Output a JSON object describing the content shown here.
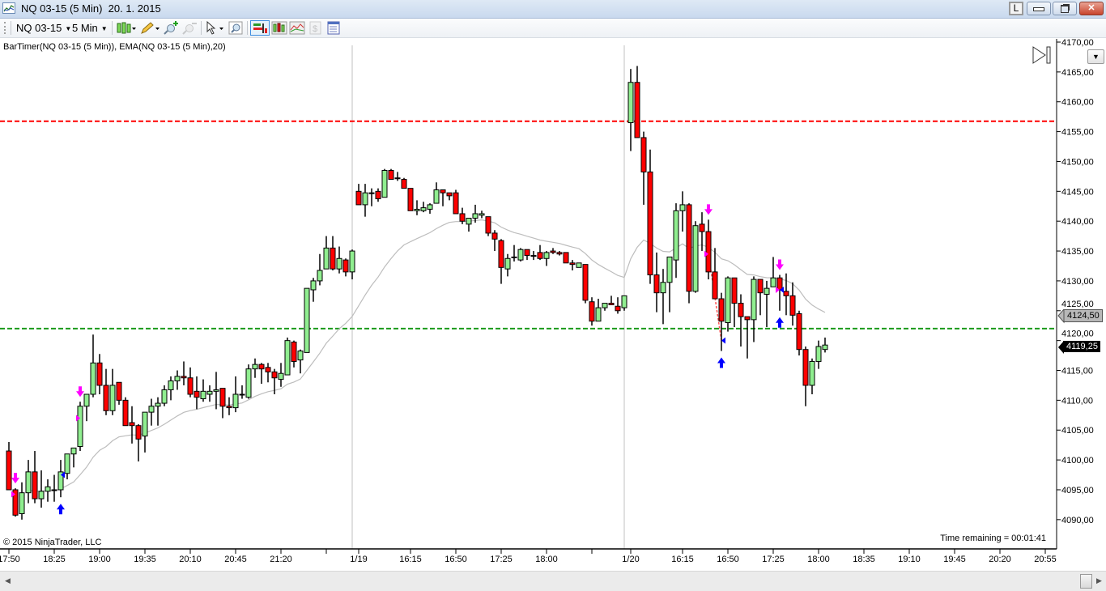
{
  "window": {
    "title": "NQ 03-15 (5 Min)  20. 1. 2015",
    "link_button": "L",
    "minimize_icon": "minimize-icon",
    "restore_icon": "restore-icon",
    "close_icon": "close-icon"
  },
  "toolbar": {
    "instrument": "NQ 03-15",
    "interval": "5 Min",
    "icons": [
      "chart-style-icon",
      "drawing-tools-icon",
      "zoom-in-icon",
      "zoom-out-icon",
      "pointer-icon",
      "magnifier-icon",
      "data-box-icon",
      "bar-chart-icon",
      "indicators-icon",
      "dollar-icon",
      "properties-icon"
    ]
  },
  "chart": {
    "indicator_label": "BarTimer(NQ 03-15 (5 Min)), EMA(NQ 03-15 (5 Min),20)",
    "copyright": "© 2015 NinjaTrader, LLC",
    "time_remaining": "Time remaining = 00:01:41",
    "ema_marker": "4124,50",
    "last_price_marker": "4119,25",
    "colors": {
      "up": "#90ee90",
      "down": "#ff0000",
      "ema": "#bdbdbd",
      "resistance": "#ff0000",
      "support": "#1a9a1a",
      "short_signal": "#ff00ff",
      "long_signal": "#0000ff"
    }
  },
  "chart_data": {
    "type": "candlestick",
    "ylim": [
      4087,
      4171
    ],
    "y_ticks": [
      "4170,00",
      "4165,00",
      "4160,00",
      "4155,00",
      "4150,00",
      "4145,00",
      "4140,00",
      "4135,00",
      "4130,00",
      "4125,00",
      "4120,00",
      "4115,00",
      "4110,00",
      "4105,00",
      "4100,00",
      "4095,00",
      "4090,00"
    ],
    "x_ticks": [
      {
        "label": "17:50",
        "bar": 0
      },
      {
        "label": "18:25",
        "bar": 7
      },
      {
        "label": "19:00",
        "bar": 14
      },
      {
        "label": "19:35",
        "bar": 21
      },
      {
        "label": "20:10",
        "bar": 28
      },
      {
        "label": "20:45",
        "bar": 35
      },
      {
        "label": "21:20",
        "bar": 42
      },
      {
        "label": "",
        "bar": 49
      },
      {
        "label": "1/19",
        "bar": 54
      },
      {
        "label": "16:15",
        "bar": 62
      },
      {
        "label": "16:50",
        "bar": 69
      },
      {
        "label": "17:25",
        "bar": 76
      },
      {
        "label": "18:00",
        "bar": 83
      },
      {
        "label": "",
        "bar": 90
      },
      {
        "label": "1/20",
        "bar": 96
      },
      {
        "label": "16:15",
        "bar": 104
      },
      {
        "label": "16:50",
        "bar": 111
      },
      {
        "label": "17:25",
        "bar": 118
      },
      {
        "label": "18:00",
        "bar": 125
      },
      {
        "label": "18:35",
        "bar": 132
      },
      {
        "label": "19:10",
        "bar": 139
      },
      {
        "label": "19:45",
        "bar": 146
      },
      {
        "label": "20:20",
        "bar": 153
      },
      {
        "label": "20:55",
        "bar": 160
      }
    ],
    "session_breaks": [
      53,
      95
    ],
    "ema_period": 20,
    "horizontal_lines": [
      {
        "price": 4156.75,
        "color": "#ff0000"
      },
      {
        "price": 4122.0,
        "color": "#1a9a1a"
      }
    ],
    "ohlc": [
      [
        4101.5,
        4103,
        4095,
        4095
      ],
      [
        4095,
        4095.25,
        4090.5,
        4090.75
      ],
      [
        4091,
        4096.25,
        4090,
        4094.5
      ],
      [
        4094.5,
        4100,
        4092.75,
        4098
      ],
      [
        4098,
        4101.5,
        4092.75,
        4093.5
      ],
      [
        4093.5,
        4098.25,
        4092,
        4094.75
      ],
      [
        4094.75,
        4096.75,
        4093,
        4095.5
      ],
      [
        4095,
        4097.5,
        4093,
        4095
      ],
      [
        4095,
        4100,
        4093.75,
        4098
      ],
      [
        4097.75,
        4101,
        4096.75,
        4101
      ],
      [
        4101,
        4102,
        4098.75,
        4102
      ],
      [
        4102.25,
        4109.75,
        4101.5,
        4109
      ],
      [
        4109,
        4111,
        4106.5,
        4111
      ],
      [
        4111,
        4121,
        4110.5,
        4116.25
      ],
      [
        4116.25,
        4117.75,
        4111,
        4112.5
      ],
      [
        4112.5,
        4115.25,
        4107.5,
        4108.25
      ],
      [
        4108.25,
        4115.25,
        4107.5,
        4112.5
      ],
      [
        4113,
        4113,
        4109.25,
        4110
      ],
      [
        4110,
        4110.5,
        4105.75,
        4105.75
      ],
      [
        4106.25,
        4109,
        4102.75,
        4105.75
      ],
      [
        4105.75,
        4106,
        4099.75,
        4103.5
      ],
      [
        4104,
        4108,
        4101.25,
        4108
      ],
      [
        4108,
        4110.25,
        4105.75,
        4109
      ],
      [
        4109,
        4110.5,
        4105.75,
        4109.5
      ],
      [
        4109.5,
        4112.5,
        4109,
        4111.75
      ],
      [
        4111.75,
        4114,
        4110,
        4113.25
      ],
      [
        4113.25,
        4115,
        4111.75,
        4114
      ],
      [
        4114,
        4116.5,
        4112.5,
        4113.75
      ],
      [
        4113.75,
        4115.5,
        4110.5,
        4111
      ],
      [
        4111.5,
        4114,
        4108.5,
        4110.5
      ],
      [
        4110.25,
        4113.5,
        4109.75,
        4111.5
      ],
      [
        4111,
        4112.5,
        4109.75,
        4111.5
      ],
      [
        4111.5,
        4114.75,
        4108.5,
        4111.75
      ],
      [
        4112,
        4112,
        4107,
        4109
      ],
      [
        4109,
        4110.5,
        4107.5,
        4108.75
      ],
      [
        4108.75,
        4114,
        4108,
        4111
      ],
      [
        4111,
        4112.5,
        4110.25,
        4111
      ],
      [
        4110.5,
        4116,
        4110.25,
        4115.25
      ],
      [
        4115.25,
        4117,
        4113.75,
        4116
      ],
      [
        4116,
        4116.25,
        4112.75,
        4115.25
      ],
      [
        4115.5,
        4116.25,
        4113,
        4114.75
      ],
      [
        4114.75,
        4115.25,
        4111,
        4113.75
      ],
      [
        4113.5,
        4116.25,
        4112.25,
        4114.5
      ],
      [
        4114.25,
        4120.5,
        4114.25,
        4120
      ],
      [
        4119.75,
        4120,
        4115.5,
        4116.5
      ],
      [
        4116.75,
        4118.5,
        4114.5,
        4118.25
      ],
      [
        4118,
        4128.75,
        4118,
        4128.75
      ],
      [
        4128.5,
        4130.5,
        4126.5,
        4130
      ],
      [
        4130,
        4134.5,
        4129.25,
        4131.75
      ],
      [
        4132,
        4137.5,
        4132,
        4135.5
      ],
      [
        4135.5,
        4137.5,
        4131.75,
        4132
      ],
      [
        4132,
        4135.75,
        4131.25,
        4133.75
      ],
      [
        4133.5,
        4133.75,
        4130.75,
        4131.5
      ],
      [
        4131.5,
        4135.25,
        4130.25,
        4135
      ],
      [
        4145,
        4146.25,
        4142.75,
        4142.75
      ],
      [
        4142.75,
        4146.25,
        4140.75,
        4144.75
      ],
      [
        4144.75,
        4145.5,
        4142.5,
        4144.75
      ],
      [
        4145,
        4145.5,
        4143.25,
        4143.75
      ],
      [
        4144,
        4148.75,
        4144,
        4148.5
      ],
      [
        4148.5,
        4148.75,
        4147,
        4147
      ],
      [
        4147.25,
        4148.25,
        4146.75,
        4147.25
      ],
      [
        4147,
        4147.25,
        4145.5,
        4145.5
      ],
      [
        4145.5,
        4145.5,
        4141.75,
        4141.75
      ],
      [
        4141.75,
        4143.5,
        4141,
        4142
      ],
      [
        4141.75,
        4143.25,
        4141.5,
        4142.25
      ],
      [
        4142,
        4143,
        4141.25,
        4142.75
      ],
      [
        4143,
        4146.5,
        4143,
        4145.25
      ],
      [
        4145.25,
        4145.25,
        4142.5,
        4144.75
      ],
      [
        4144.75,
        4144.75,
        4143.5,
        4144.25
      ],
      [
        4144.75,
        4145.25,
        4141.25,
        4141.25
      ],
      [
        4141.25,
        4142.25,
        4139.5,
        4140
      ],
      [
        4139.5,
        4140.5,
        4138.25,
        4140.5
      ],
      [
        4140.5,
        4142.75,
        4139.75,
        4141.25
      ],
      [
        4141,
        4141.75,
        4140.5,
        4141.25
      ],
      [
        4140.75,
        4140.75,
        4137.5,
        4138
      ],
      [
        4138,
        4138.5,
        4135,
        4137
      ],
      [
        4136.75,
        4137,
        4129.5,
        4132.25
      ],
      [
        4132,
        4134.5,
        4130.75,
        4133.75
      ],
      [
        4134,
        4136,
        4133.25,
        4134
      ],
      [
        4133.5,
        4135.5,
        4133.25,
        4135.25
      ],
      [
        4135.25,
        4135.25,
        4133.5,
        4134.25
      ],
      [
        4134.25,
        4135,
        4133.5,
        4134.25
      ],
      [
        4134.75,
        4136,
        4133.5,
        4133.75
      ],
      [
        4133.75,
        4135,
        4132.5,
        4134.75
      ],
      [
        4135,
        4135.5,
        4134.5,
        4134.75
      ],
      [
        4134.75,
        4135,
        4134.25,
        4134.5
      ],
      [
        4134.75,
        4134.75,
        4133,
        4133
      ],
      [
        4133,
        4133.5,
        4131.75,
        4132.75
      ],
      [
        4132.25,
        4133,
        4132.25,
        4133
      ],
      [
        4132.75,
        4132.75,
        4126.25,
        4126.75
      ],
      [
        4126.5,
        4127.25,
        4122.5,
        4123.25
      ],
      [
        4123.25,
        4127,
        4123.25,
        4125.5
      ],
      [
        4125.5,
        4126.25,
        4125,
        4126.25
      ],
      [
        4126.25,
        4127.5,
        4126,
        4126
      ],
      [
        4125.75,
        4127.25,
        4124.5,
        4125
      ],
      [
        4125.5,
        4127.5,
        4125,
        4127.5
      ],
      [
        4156.5,
        4165.5,
        4151.75,
        4163.25
      ],
      [
        4163.25,
        4166,
        4154,
        4154
      ],
      [
        4154,
        4155,
        4142.75,
        4148.25
      ],
      [
        4148.25,
        4152,
        4129.5,
        4131
      ],
      [
        4131,
        4134.75,
        4124.75,
        4128
      ],
      [
        4128,
        4132,
        4122.75,
        4129.75
      ],
      [
        4129.75,
        4134,
        4124.75,
        4134
      ],
      [
        4133.5,
        4143,
        4130.5,
        4141.75
      ],
      [
        4141.75,
        4145,
        4138.25,
        4142.75
      ],
      [
        4142.75,
        4143,
        4126.25,
        4128.25
      ],
      [
        4128.25,
        4140,
        4128,
        4139.25
      ],
      [
        4139.5,
        4141.5,
        4135,
        4138.25
      ],
      [
        4138.25,
        4140.25,
        4130.25,
        4131.5
      ],
      [
        4131.5,
        4135.5,
        4127,
        4127
      ],
      [
        4127,
        4128,
        4118.25,
        4123.25
      ],
      [
        4123,
        4130.75,
        4121.5,
        4130.5
      ],
      [
        4130.5,
        4130.5,
        4122.25,
        4126.25
      ],
      [
        4126.25,
        4127.75,
        4119,
        4124
      ],
      [
        4124,
        4124,
        4117,
        4123.5
      ],
      [
        4123.5,
        4130.75,
        4119.75,
        4130.25
      ],
      [
        4130.25,
        4130.25,
        4124.25,
        4128
      ],
      [
        4127.75,
        4130,
        4122.25,
        4128.75
      ],
      [
        4129,
        4134,
        4129,
        4130.5
      ],
      [
        4130.5,
        4131,
        4125,
        4128.5
      ],
      [
        4128.25,
        4131.25,
        4124.25,
        4127.5
      ],
      [
        4127.5,
        4129.75,
        4122.5,
        4124.25
      ],
      [
        4124.5,
        4125,
        4117.5,
        4118.5
      ],
      [
        4118.5,
        4119,
        4109,
        4112.5
      ],
      [
        4112.5,
        4117,
        4111,
        4116.5
      ],
      [
        4116.5,
        4120,
        4115.25,
        4119
      ],
      [
        4118.5,
        4120.5,
        4118,
        4119.25
      ]
    ],
    "signals": {
      "short_arrows": [
        1,
        11,
        108,
        119
      ],
      "long_arrows": [
        8,
        110,
        119
      ],
      "short_entries": [
        {
          "bar": 1,
          "price": 4094.25
        },
        {
          "bar": 11,
          "price": 4107
        },
        {
          "bar": 108,
          "price": 4134.5
        },
        {
          "bar": 119,
          "price": 4128.5
        }
      ],
      "long_entries": [
        {
          "bar": 8,
          "price": 4097.5
        },
        {
          "bar": 110,
          "price": 4120
        },
        {
          "bar": 119,
          "price": 4128.5
        }
      ]
    }
  }
}
